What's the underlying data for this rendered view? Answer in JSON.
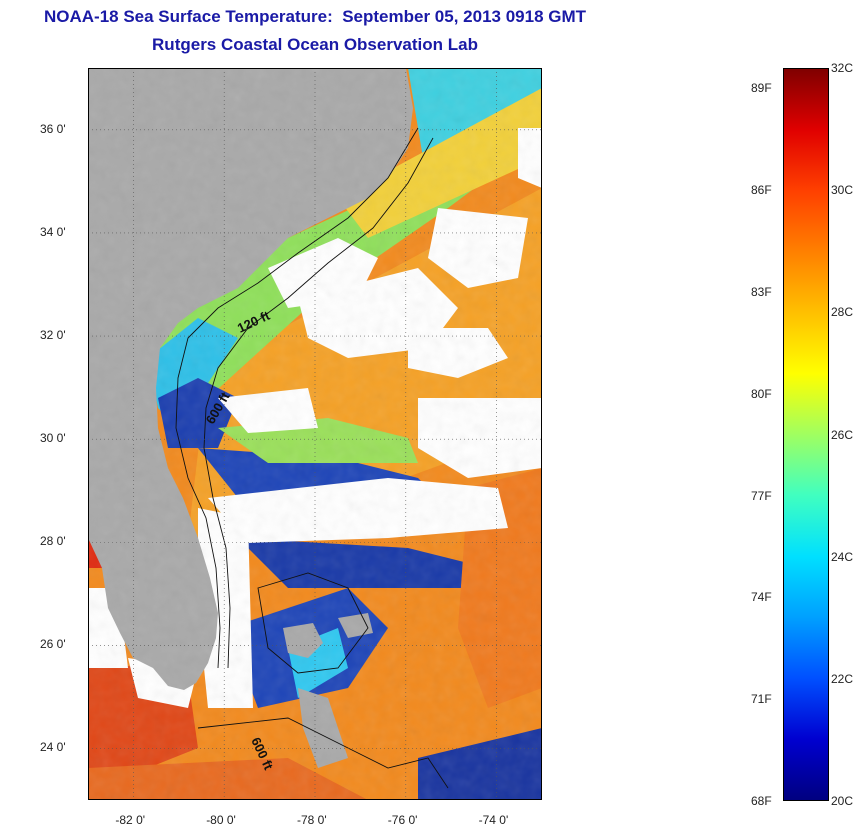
{
  "header": {
    "title": "NOAA-18 Sea Surface Temperature:  September 05, 2013 0918 GMT",
    "subtitle": "Rutgers Coastal Ocean Observation Lab"
  },
  "map": {
    "lon_range": [
      -83.0,
      -73.0
    ],
    "lat_range": [
      23.0,
      37.2
    ],
    "lat_ticks": [
      {
        "value": 24,
        "label": "24 0'"
      },
      {
        "value": 26,
        "label": "26 0'"
      },
      {
        "value": 28,
        "label": "28 0'"
      },
      {
        "value": 30,
        "label": "30 0'"
      },
      {
        "value": 32,
        "label": "32 0'"
      },
      {
        "value": 34,
        "label": "34 0'"
      },
      {
        "value": 36,
        "label": "36 0'"
      }
    ],
    "lon_ticks": [
      {
        "value": -82,
        "label": "-82 0'"
      },
      {
        "value": -80,
        "label": "-80 0'"
      },
      {
        "value": -78,
        "label": "-78 0'"
      },
      {
        "value": -76,
        "label": "-76 0'"
      },
      {
        "value": -74,
        "label": "-74 0'"
      }
    ],
    "depth_labels": [
      "120 ft",
      "600 ft",
      "600 ft"
    ],
    "colors": {
      "land": "#a9a9a9",
      "cloud": "#ffffff",
      "warm": "#f28a1e",
      "hot": "#e0401a",
      "mid": "#f7c43a",
      "cool": "#7fe07a",
      "cyan": "#25c6f0",
      "cold": "#1433a8"
    }
  },
  "colorbar": {
    "fahrenheit": [
      "89F",
      "86F",
      "83F",
      "80F",
      "77F",
      "74F",
      "71F",
      "68F"
    ],
    "celsius": [
      "32C",
      "30C",
      "28C",
      "26C",
      "24C",
      "22C",
      "20C"
    ],
    "c_range": [
      20,
      32
    ],
    "stops": [
      "#000080",
      "#0000d0",
      "#0050ff",
      "#00a0ff",
      "#00e0ff",
      "#40ffc0",
      "#a0ff60",
      "#ffff00",
      "#ffc000",
      "#ff8000",
      "#ff4000",
      "#e00000",
      "#800000"
    ]
  }
}
